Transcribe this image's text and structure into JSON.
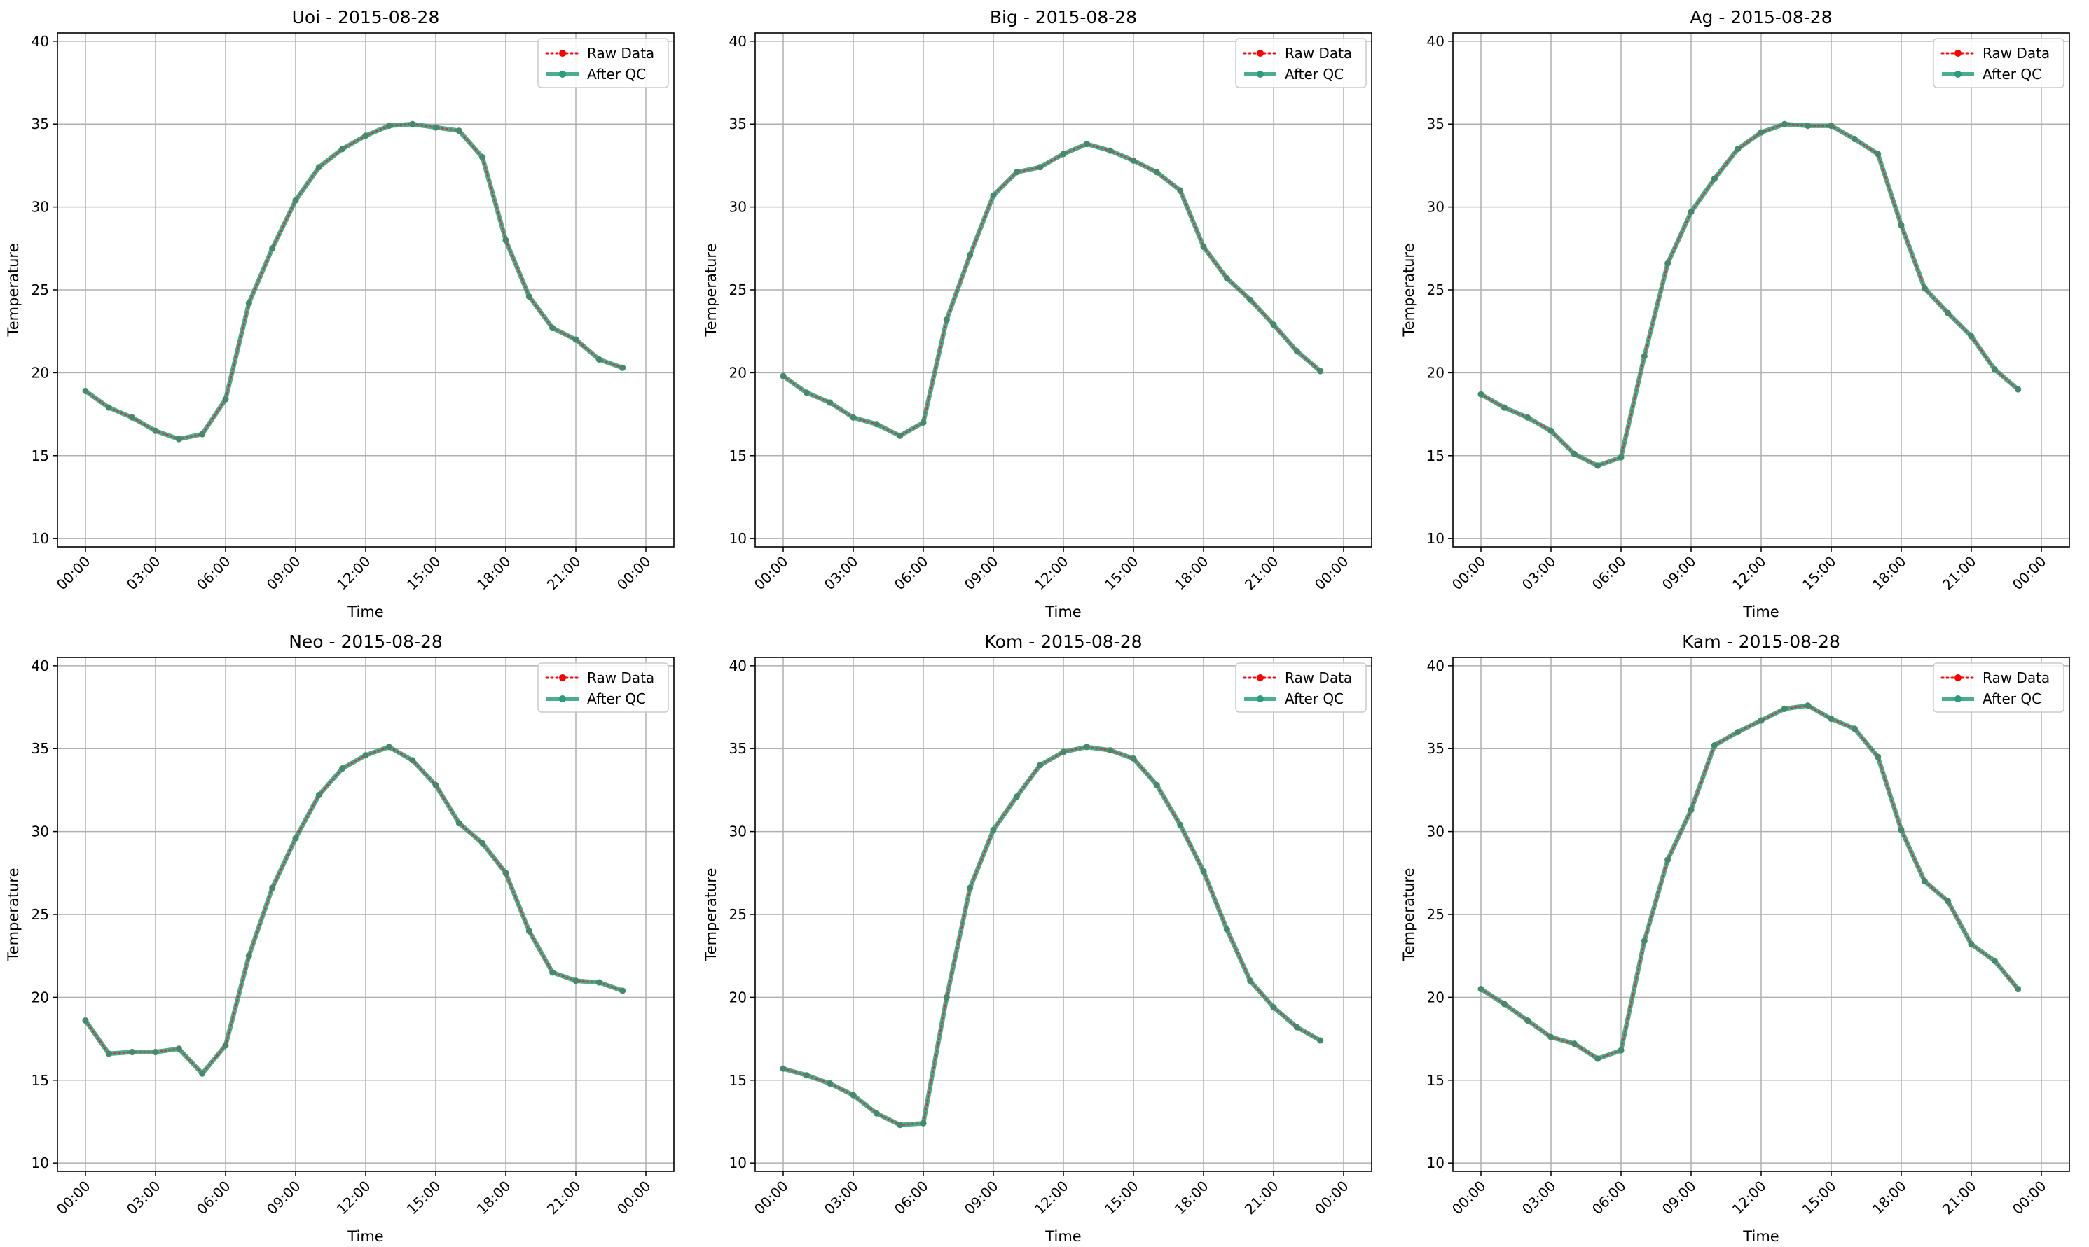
{
  "figure": {
    "xlabel": "Time",
    "ylabel": "Temperature",
    "legend": [
      "Raw Data",
      "After QC"
    ],
    "legend_position": "top-right",
    "colors": {
      "raw": "#ff0000",
      "qc": "#2a9d7c",
      "grid": "#b0b0b0"
    }
  },
  "chart_data": [
    {
      "type": "line",
      "title": "Uoi - 2015-08-28",
      "xlabel": "Time",
      "ylabel": "Temperature",
      "ylim": [
        9.5,
        40.5
      ],
      "yticks": [
        10,
        15,
        20,
        25,
        30,
        35,
        40
      ],
      "xticks": [
        "00:00",
        "03:00",
        "06:00",
        "09:00",
        "12:00",
        "15:00",
        "18:00",
        "21:00",
        "00:00"
      ],
      "grid": true,
      "x": [
        "00:00",
        "01:00",
        "02:00",
        "03:00",
        "04:00",
        "05:00",
        "06:00",
        "07:00",
        "08:00",
        "09:00",
        "10:00",
        "11:00",
        "12:00",
        "13:00",
        "14:00",
        "15:00",
        "16:00",
        "17:00",
        "18:00",
        "19:00",
        "20:00",
        "21:00",
        "22:00",
        "23:00"
      ],
      "series": [
        {
          "name": "Raw Data",
          "values": [
            18.9,
            17.9,
            17.3,
            16.5,
            16.0,
            16.3,
            18.4,
            24.2,
            27.5,
            30.4,
            32.4,
            33.5,
            34.3,
            34.9,
            35.0,
            34.8,
            34.6,
            33.0,
            28.0,
            24.6,
            22.7,
            22.0,
            20.8,
            20.3
          ]
        },
        {
          "name": "After QC",
          "values": [
            18.9,
            17.9,
            17.3,
            16.5,
            16.0,
            16.3,
            18.4,
            24.2,
            27.5,
            30.4,
            32.4,
            33.5,
            34.3,
            34.9,
            35.0,
            34.8,
            34.6,
            33.0,
            28.0,
            24.6,
            22.7,
            22.0,
            20.8,
            20.3
          ]
        }
      ]
    },
    {
      "type": "line",
      "title": "Big - 2015-08-28",
      "xlabel": "Time",
      "ylabel": "Temperature",
      "ylim": [
        9.5,
        40.5
      ],
      "yticks": [
        10,
        15,
        20,
        25,
        30,
        35,
        40
      ],
      "xticks": [
        "00:00",
        "03:00",
        "06:00",
        "09:00",
        "12:00",
        "15:00",
        "18:00",
        "21:00",
        "00:00"
      ],
      "grid": true,
      "x": [
        "00:00",
        "01:00",
        "02:00",
        "03:00",
        "04:00",
        "05:00",
        "06:00",
        "07:00",
        "08:00",
        "09:00",
        "10:00",
        "11:00",
        "12:00",
        "13:00",
        "14:00",
        "15:00",
        "16:00",
        "17:00",
        "18:00",
        "19:00",
        "20:00",
        "21:00",
        "22:00",
        "23:00"
      ],
      "series": [
        {
          "name": "Raw Data",
          "values": [
            19.8,
            18.8,
            18.2,
            17.3,
            16.9,
            16.2,
            17.0,
            23.2,
            27.1,
            30.7,
            32.1,
            32.4,
            33.2,
            33.8,
            33.4,
            32.8,
            32.1,
            31.0,
            27.6,
            25.7,
            24.4,
            22.9,
            21.3,
            20.1
          ]
        },
        {
          "name": "After QC",
          "values": [
            19.8,
            18.8,
            18.2,
            17.3,
            16.9,
            16.2,
            17.0,
            23.2,
            27.1,
            30.7,
            32.1,
            32.4,
            33.2,
            33.8,
            33.4,
            32.8,
            32.1,
            31.0,
            27.6,
            25.7,
            24.4,
            22.9,
            21.3,
            20.1
          ]
        }
      ]
    },
    {
      "type": "line",
      "title": "Ag - 2015-08-28",
      "xlabel": "Time",
      "ylabel": "Temperature",
      "ylim": [
        9.5,
        40.5
      ],
      "yticks": [
        10,
        15,
        20,
        25,
        30,
        35,
        40
      ],
      "xticks": [
        "00:00",
        "03:00",
        "06:00",
        "09:00",
        "12:00",
        "15:00",
        "18:00",
        "21:00",
        "00:00"
      ],
      "grid": true,
      "x": [
        "00:00",
        "01:00",
        "02:00",
        "03:00",
        "04:00",
        "05:00",
        "06:00",
        "07:00",
        "08:00",
        "09:00",
        "10:00",
        "11:00",
        "12:00",
        "13:00",
        "14:00",
        "15:00",
        "16:00",
        "17:00",
        "18:00",
        "19:00",
        "20:00",
        "21:00",
        "22:00",
        "23:00"
      ],
      "series": [
        {
          "name": "Raw Data",
          "values": [
            18.7,
            17.9,
            17.3,
            16.5,
            15.1,
            14.4,
            14.9,
            21.0,
            26.6,
            29.7,
            31.7,
            33.5,
            34.5,
            35.0,
            34.9,
            34.9,
            34.1,
            33.2,
            28.9,
            25.1,
            23.6,
            22.2,
            20.2,
            19.0
          ]
        },
        {
          "name": "After QC",
          "values": [
            18.7,
            17.9,
            17.3,
            16.5,
            15.1,
            14.4,
            14.9,
            21.0,
            26.6,
            29.7,
            31.7,
            33.5,
            34.5,
            35.0,
            34.9,
            34.9,
            34.1,
            33.2,
            28.9,
            25.1,
            23.6,
            22.2,
            20.2,
            19.0
          ]
        }
      ]
    },
    {
      "type": "line",
      "title": "Neo - 2015-08-28",
      "xlabel": "Time",
      "ylabel": "Temperature",
      "ylim": [
        9.5,
        40.5
      ],
      "yticks": [
        10,
        15,
        20,
        25,
        30,
        35,
        40
      ],
      "xticks": [
        "00:00",
        "03:00",
        "06:00",
        "09:00",
        "12:00",
        "15:00",
        "18:00",
        "21:00",
        "00:00"
      ],
      "grid": true,
      "x": [
        "00:00",
        "01:00",
        "02:00",
        "03:00",
        "04:00",
        "05:00",
        "06:00",
        "07:00",
        "08:00",
        "09:00",
        "10:00",
        "11:00",
        "12:00",
        "13:00",
        "14:00",
        "15:00",
        "16:00",
        "17:00",
        "18:00",
        "19:00",
        "20:00",
        "21:00",
        "22:00",
        "23:00"
      ],
      "series": [
        {
          "name": "Raw Data",
          "values": [
            18.6,
            16.6,
            16.7,
            16.7,
            16.9,
            15.4,
            17.1,
            22.5,
            26.6,
            29.6,
            32.2,
            33.8,
            34.6,
            35.1,
            34.3,
            32.8,
            30.5,
            29.3,
            27.5,
            24.0,
            21.5,
            21.0,
            20.9,
            20.4
          ]
        },
        {
          "name": "After QC",
          "values": [
            18.6,
            16.6,
            16.7,
            16.7,
            16.9,
            15.4,
            17.1,
            22.5,
            26.6,
            29.6,
            32.2,
            33.8,
            34.6,
            35.1,
            34.3,
            32.8,
            30.5,
            29.3,
            27.5,
            24.0,
            21.5,
            21.0,
            20.9,
            20.4
          ]
        }
      ]
    },
    {
      "type": "line",
      "title": "Kom - 2015-08-28",
      "xlabel": "Time",
      "ylabel": "Temperature",
      "ylim": [
        9.5,
        40.5
      ],
      "yticks": [
        10,
        15,
        20,
        25,
        30,
        35,
        40
      ],
      "xticks": [
        "00:00",
        "03:00",
        "06:00",
        "09:00",
        "12:00",
        "15:00",
        "18:00",
        "21:00",
        "00:00"
      ],
      "grid": true,
      "x": [
        "00:00",
        "01:00",
        "02:00",
        "03:00",
        "04:00",
        "05:00",
        "06:00",
        "07:00",
        "08:00",
        "09:00",
        "10:00",
        "11:00",
        "12:00",
        "13:00",
        "14:00",
        "15:00",
        "16:00",
        "17:00",
        "18:00",
        "19:00",
        "20:00",
        "21:00",
        "22:00",
        "23:00"
      ],
      "series": [
        {
          "name": "Raw Data",
          "values": [
            15.7,
            15.3,
            14.8,
            14.1,
            13.0,
            12.3,
            12.4,
            20.0,
            26.6,
            30.1,
            32.1,
            34.0,
            34.8,
            35.1,
            34.9,
            34.4,
            32.8,
            30.4,
            27.6,
            24.1,
            21.0,
            19.4,
            18.2,
            17.4
          ]
        },
        {
          "name": "After QC",
          "values": [
            15.7,
            15.3,
            14.8,
            14.1,
            13.0,
            12.3,
            12.4,
            20.0,
            26.6,
            30.1,
            32.1,
            34.0,
            34.8,
            35.1,
            34.9,
            34.4,
            32.8,
            30.4,
            27.6,
            24.1,
            21.0,
            19.4,
            18.2,
            17.4
          ]
        }
      ]
    },
    {
      "type": "line",
      "title": "Kam - 2015-08-28",
      "xlabel": "Time",
      "ylabel": "Temperature",
      "ylim": [
        9.5,
        40.5
      ],
      "yticks": [
        10,
        15,
        20,
        25,
        30,
        35,
        40
      ],
      "xticks": [
        "00:00",
        "03:00",
        "06:00",
        "09:00",
        "12:00",
        "15:00",
        "18:00",
        "21:00",
        "00:00"
      ],
      "grid": true,
      "x": [
        "00:00",
        "01:00",
        "02:00",
        "03:00",
        "04:00",
        "05:00",
        "06:00",
        "07:00",
        "08:00",
        "09:00",
        "10:00",
        "11:00",
        "12:00",
        "13:00",
        "14:00",
        "15:00",
        "16:00",
        "17:00",
        "18:00",
        "19:00",
        "20:00",
        "21:00",
        "22:00",
        "23:00"
      ],
      "series": [
        {
          "name": "Raw Data",
          "values": [
            20.5,
            19.6,
            18.6,
            17.6,
            17.2,
            16.3,
            16.8,
            23.4,
            28.3,
            31.3,
            35.2,
            36.0,
            36.7,
            37.4,
            37.6,
            36.8,
            36.2,
            34.5,
            30.1,
            27.0,
            25.8,
            23.2,
            22.2,
            20.5
          ]
        },
        {
          "name": "After QC",
          "values": [
            20.5,
            19.6,
            18.6,
            17.6,
            17.2,
            16.3,
            16.8,
            23.4,
            28.3,
            31.3,
            35.2,
            36.0,
            36.7,
            37.4,
            37.6,
            36.8,
            36.2,
            34.5,
            30.1,
            27.0,
            25.8,
            23.2,
            22.2,
            20.5
          ]
        }
      ]
    }
  ]
}
